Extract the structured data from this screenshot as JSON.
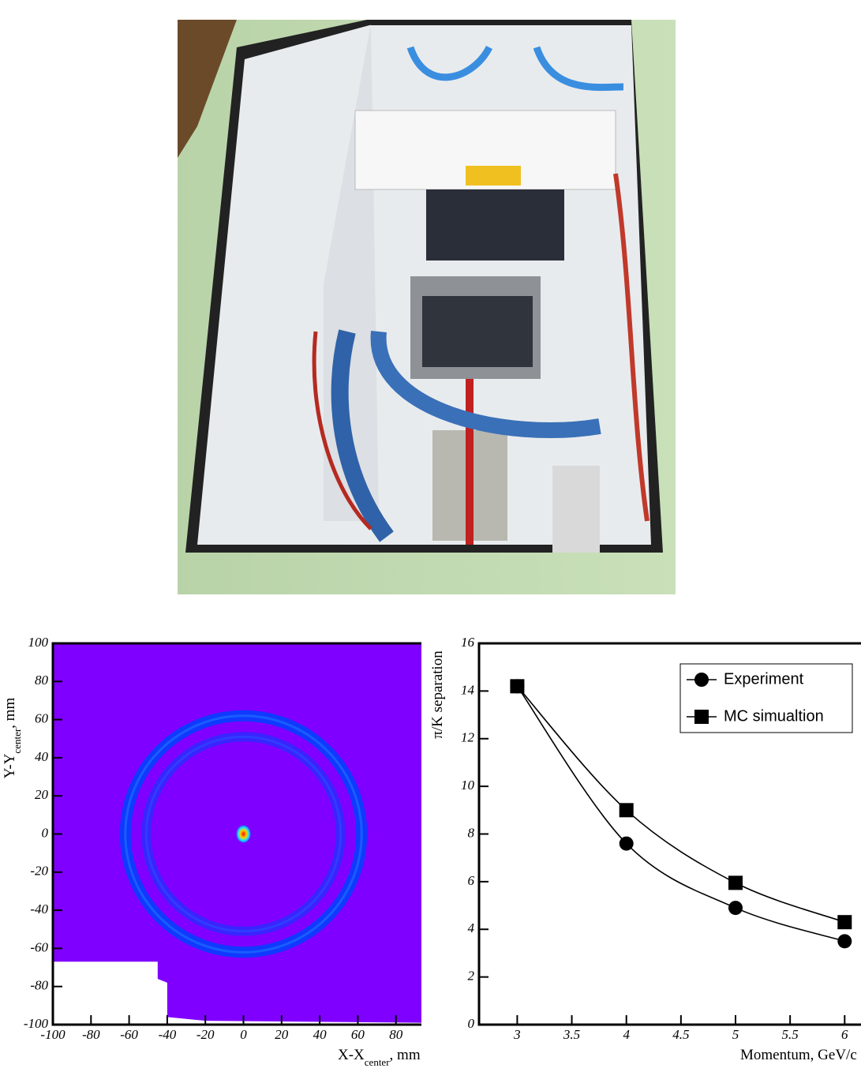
{
  "chart_data": [
    {
      "type": "heatmap",
      "x_label": [
        "X-X",
        "center",
        ", mm"
      ],
      "y_label": [
        "Y-Y",
        "center",
        ", mm"
      ],
      "xlim": [
        -100,
        94
      ],
      "ylim": [
        -100,
        100
      ],
      "xticks": [
        -100,
        -80,
        -60,
        -40,
        -20,
        0,
        20,
        40,
        60,
        80
      ],
      "yticks": [
        -100,
        -80,
        -60,
        -40,
        -20,
        0,
        20,
        40,
        60,
        80,
        100
      ],
      "background_color": "#8000ff",
      "ring_color": "#0a3cff",
      "spot_color": "#ff2000",
      "rings": [
        {
          "x": 0,
          "y": 0,
          "r": 62
        },
        {
          "x": 0,
          "y": 0,
          "r": 51
        }
      ],
      "spot": {
        "x": 0,
        "y": 0
      }
    },
    {
      "type": "line",
      "x_label": "Momentum, GeV/c",
      "y_label": "π/K separation",
      "xlim": [
        2.65,
        6.15
      ],
      "ylim": [
        0,
        16
      ],
      "xticks": [
        3,
        3.5,
        4,
        4.5,
        5,
        5.5,
        6
      ],
      "yticks": [
        0,
        2,
        4,
        6,
        8,
        10,
        12,
        14,
        16
      ],
      "legend": "top-right",
      "x": [
        3,
        4,
        5,
        6
      ],
      "series": [
        {
          "name": "Experiment",
          "color": "#000000",
          "marker": "circle",
          "values": [
            14.2,
            7.6,
            4.9,
            3.5
          ]
        },
        {
          "name": "MC simualtion",
          "color": "#000000",
          "marker": "square",
          "values": [
            14.2,
            9.0,
            5.95,
            4.3
          ]
        }
      ]
    }
  ]
}
